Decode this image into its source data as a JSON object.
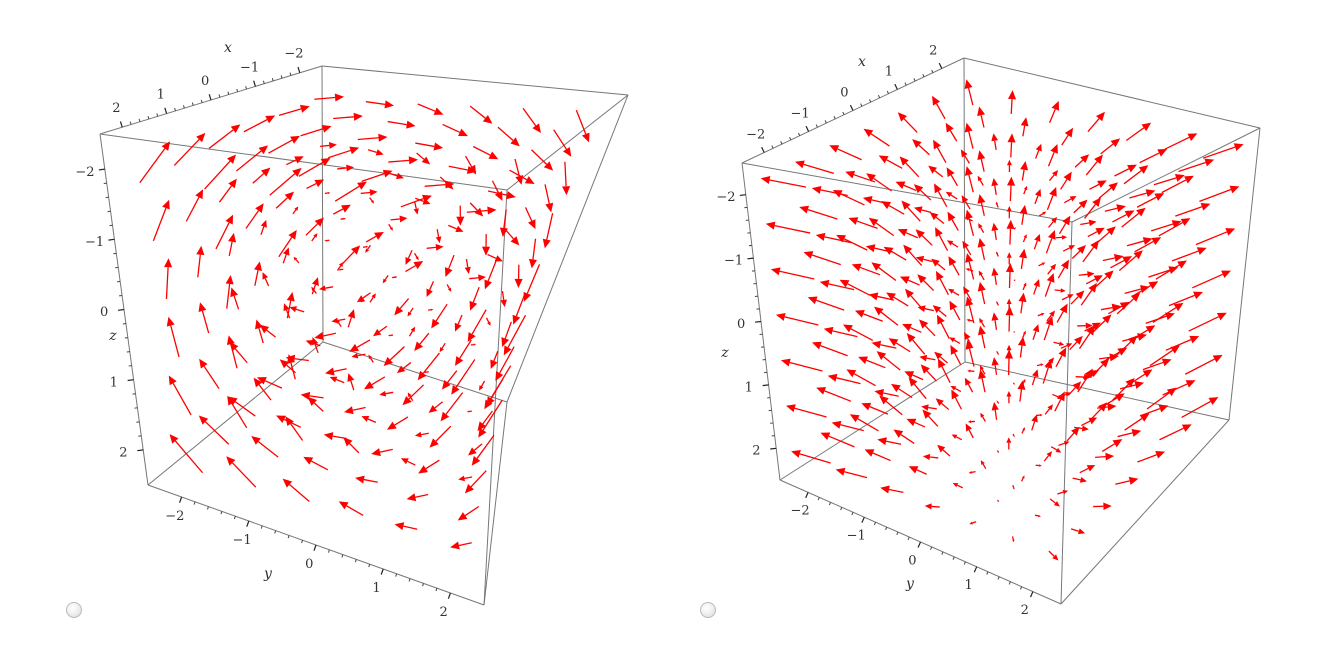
{
  "colors": {
    "arrow": "#ff0000",
    "box": "#777777",
    "text": "#333333"
  },
  "chart_data": [
    {
      "type": "vector_field_3d",
      "title": "",
      "xlabel": "x",
      "ylabel": "y",
      "zlabel": "z",
      "xlim": [
        -2.5,
        2.5
      ],
      "ylim": [
        -2.5,
        2.5
      ],
      "zlim": [
        -2.5,
        2.5
      ],
      "x_ticks": [
        "2",
        "1",
        "0",
        "−1",
        "−2"
      ],
      "y_ticks": [
        "−2",
        "−1",
        "0",
        "1",
        "2"
      ],
      "z_ticks": [
        "2",
        "1",
        "0",
        "−1",
        "−2"
      ],
      "field": [
        "−z",
        "z",
        "x − y"
      ],
      "sample_points_per_axis": 6,
      "sample_range": [
        -2.5,
        2.5
      ],
      "radio_selected": false
    },
    {
      "type": "vector_field_3d",
      "title": "",
      "xlabel": "x",
      "ylabel": "y",
      "zlabel": "z",
      "xlim": [
        -2.5,
        2.5
      ],
      "ylim": [
        -2.5,
        2.5
      ],
      "zlim": [
        -2.5,
        2.5
      ],
      "x_ticks": [
        "−2",
        "−1",
        "0",
        "1",
        "2"
      ],
      "y_ticks": [
        "−2",
        "−1",
        "0",
        "1",
        "2"
      ],
      "z_ticks": [
        "2",
        "1",
        "0",
        "−1",
        "−2"
      ],
      "field": [
        "x",
        "y",
        "1"
      ],
      "sample_points_per_axis": 7,
      "sample_range": [
        -2.5,
        2.5
      ],
      "radio_selected": false
    }
  ]
}
